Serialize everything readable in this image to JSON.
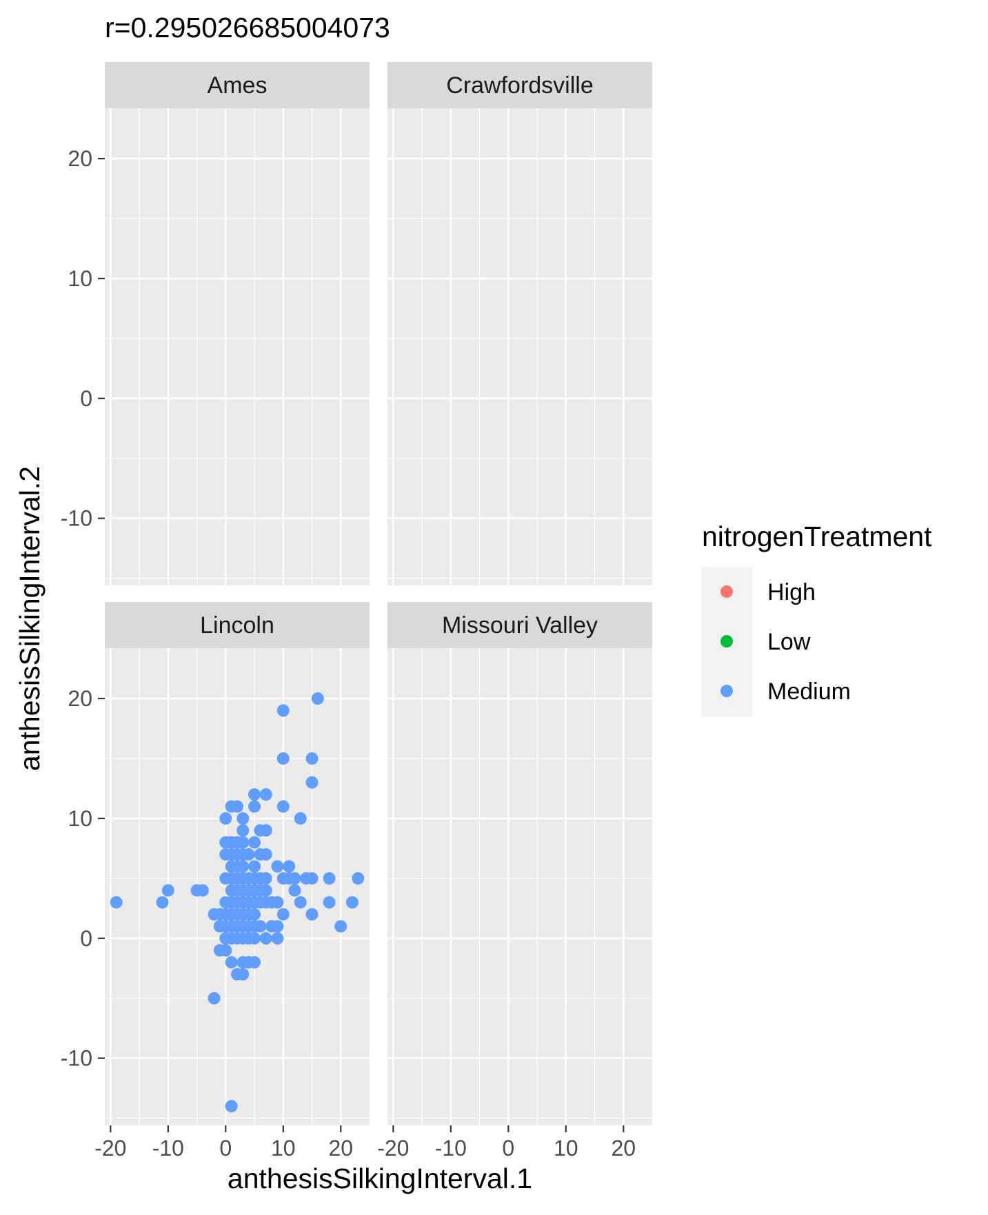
{
  "chart_data": {
    "type": "scatter",
    "title": "r=0.295026685004073",
    "xlabel": "anthesisSilkingInterval.1",
    "ylabel": "anthesisSilkingInterval.2",
    "xlim": [
      -21,
      25
    ],
    "ylim": [
      -15.6,
      24.2
    ],
    "x_ticks": [
      -20,
      -10,
      0,
      10,
      20
    ],
    "y_ticks": [
      20,
      10,
      0,
      -10
    ],
    "x_tick_labels": [
      "-20",
      "-10",
      "0",
      "10",
      "20"
    ],
    "y_tick_labels": [
      "20",
      "10",
      "0",
      "-10"
    ],
    "grid": true,
    "facet_layout": "2x2",
    "legend": {
      "title": "nitrogenTreatment",
      "position": "right",
      "entries": [
        {
          "label": "High",
          "color": "#F8766D"
        },
        {
          "label": "Low",
          "color": "#00BA38"
        },
        {
          "label": "Medium",
          "color": "#619CFF"
        }
      ]
    },
    "facets": [
      {
        "name": "Ames",
        "points": []
      },
      {
        "name": "Crawfordsville",
        "points": []
      },
      {
        "name": "Lincoln",
        "series": "Medium",
        "points": [
          [
            -19,
            3
          ],
          [
            -11,
            3
          ],
          [
            -10,
            4
          ],
          [
            -5,
            4
          ],
          [
            -4,
            4
          ],
          [
            -2,
            2
          ],
          [
            -2,
            -5
          ],
          [
            -1,
            2
          ],
          [
            -1,
            1
          ],
          [
            -1,
            -1
          ],
          [
            0,
            10
          ],
          [
            0,
            8
          ],
          [
            0,
            7
          ],
          [
            0,
            5
          ],
          [
            0,
            3
          ],
          [
            0,
            2
          ],
          [
            0,
            1
          ],
          [
            0,
            0
          ],
          [
            0,
            -1
          ],
          [
            1,
            11
          ],
          [
            1,
            8
          ],
          [
            1,
            7
          ],
          [
            1,
            6
          ],
          [
            1,
            5
          ],
          [
            1,
            4
          ],
          [
            1,
            3
          ],
          [
            1,
            2
          ],
          [
            1,
            1
          ],
          [
            1,
            0
          ],
          [
            1,
            -2
          ],
          [
            1,
            -14
          ],
          [
            2,
            11
          ],
          [
            2,
            8
          ],
          [
            2,
            7
          ],
          [
            2,
            6
          ],
          [
            2,
            5
          ],
          [
            2,
            4
          ],
          [
            2,
            3
          ],
          [
            2,
            2
          ],
          [
            2,
            1
          ],
          [
            2,
            0
          ],
          [
            2,
            -3
          ],
          [
            3,
            10
          ],
          [
            3,
            9
          ],
          [
            3,
            8
          ],
          [
            3,
            7
          ],
          [
            3,
            6
          ],
          [
            3,
            5
          ],
          [
            3,
            4
          ],
          [
            3,
            3
          ],
          [
            3,
            2
          ],
          [
            3,
            1
          ],
          [
            3,
            0
          ],
          [
            3,
            -2
          ],
          [
            3,
            -3
          ],
          [
            4,
            7
          ],
          [
            4,
            5
          ],
          [
            4,
            4
          ],
          [
            4,
            3
          ],
          [
            4,
            2
          ],
          [
            4,
            1
          ],
          [
            4,
            0
          ],
          [
            4,
            -2
          ],
          [
            5,
            12
          ],
          [
            5,
            11
          ],
          [
            5,
            8
          ],
          [
            5,
            6
          ],
          [
            5,
            5
          ],
          [
            5,
            4
          ],
          [
            5,
            3
          ],
          [
            5,
            2
          ],
          [
            5,
            1
          ],
          [
            5,
            0
          ],
          [
            5,
            -2
          ],
          [
            6,
            9
          ],
          [
            6,
            7
          ],
          [
            6,
            5
          ],
          [
            6,
            4
          ],
          [
            6,
            3
          ],
          [
            6,
            1
          ],
          [
            7,
            12
          ],
          [
            7,
            9
          ],
          [
            7,
            7
          ],
          [
            7,
            5
          ],
          [
            7,
            4
          ],
          [
            7,
            3
          ],
          [
            7,
            0
          ],
          [
            8,
            3
          ],
          [
            8,
            1
          ],
          [
            9,
            6
          ],
          [
            9,
            3
          ],
          [
            9,
            1
          ],
          [
            9,
            0
          ],
          [
            10,
            19
          ],
          [
            10,
            15
          ],
          [
            10,
            11
          ],
          [
            10,
            5
          ],
          [
            10,
            2
          ],
          [
            11,
            6
          ],
          [
            11,
            5
          ],
          [
            12,
            5
          ],
          [
            12,
            4
          ],
          [
            13,
            10
          ],
          [
            13,
            3
          ],
          [
            14,
            5
          ],
          [
            15,
            15
          ],
          [
            15,
            13
          ],
          [
            15,
            5
          ],
          [
            15,
            2
          ],
          [
            16,
            20
          ],
          [
            18,
            5
          ],
          [
            18,
            3
          ],
          [
            20,
            1
          ],
          [
            22,
            3
          ],
          [
            23,
            5
          ]
        ]
      },
      {
        "name": "Missouri Valley",
        "points": []
      }
    ],
    "point_color": "#619CFF"
  }
}
